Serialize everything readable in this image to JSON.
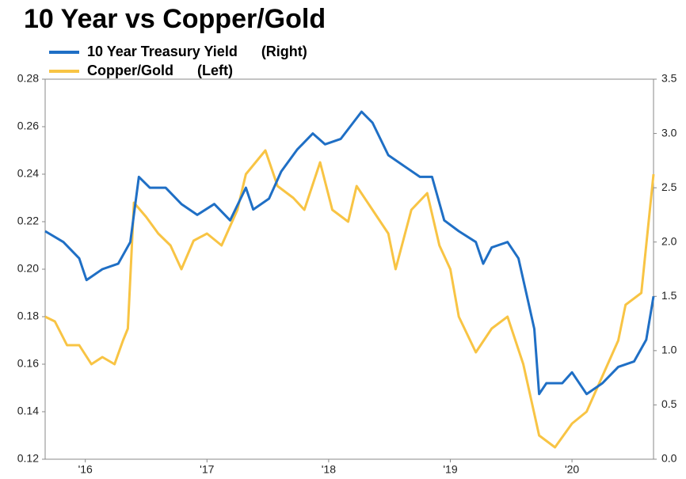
{
  "chart_data": {
    "type": "line",
    "title": "10 Year vs Copper/Gold",
    "xlim": [
      2015.67,
      2020.67
    ],
    "xticks": [
      {
        "value": 2016,
        "label": "'16"
      },
      {
        "value": 2017,
        "label": "'17"
      },
      {
        "value": 2018,
        "label": "'18"
      },
      {
        "value": 2019,
        "label": "'19"
      },
      {
        "value": 2020,
        "label": "'20"
      }
    ],
    "ylim": [
      0.12,
      0.28
    ],
    "yticks": [
      0.12,
      0.14,
      0.16,
      0.18,
      {
        "value": 0.2,
        "label": "0.20"
      },
      0.22,
      0.24,
      0.26,
      0.28
    ],
    "y2lim": [
      0,
      3.5
    ],
    "y2ticks": [
      {
        "value": 0,
        "label": "0.0"
      },
      0.5,
      {
        "value": 1,
        "label": "1.0"
      },
      1.5,
      {
        "value": 2,
        "label": "2.0"
      },
      2.5,
      {
        "value": 3,
        "label": "3.0"
      },
      3.5
    ],
    "grid": false,
    "series": [
      {
        "name": "10 Year Treasury Yield",
        "side_label": "(Right)",
        "color": "#1f6fc5",
        "axis": "y2",
        "x": [
          2015.67,
          2015.82,
          2015.95,
          2016.01,
          2016.14,
          2016.27,
          2016.37,
          2016.44,
          2016.53,
          2016.66,
          2016.79,
          2016.92,
          2017.06,
          2017.19,
          2017.32,
          2017.38,
          2017.51,
          2017.61,
          2017.74,
          2017.87,
          2017.97,
          2018.1,
          2018.27,
          2018.36,
          2018.49,
          2018.62,
          2018.75,
          2018.85,
          2018.95,
          2019.07,
          2019.21,
          2019.27,
          2019.34,
          2019.47,
          2019.56,
          2019.63,
          2019.69,
          2019.73,
          2019.79,
          2019.92,
          2020.0,
          2020.12,
          2020.25,
          2020.38,
          2020.51,
          2020.61,
          2020.67
        ],
        "values": [
          2.1,
          2.0,
          1.85,
          1.65,
          1.75,
          1.8,
          2.0,
          2.6,
          2.5,
          2.5,
          2.35,
          2.25,
          2.35,
          2.2,
          2.5,
          2.3,
          2.4,
          2.65,
          2.85,
          3.0,
          2.9,
          2.95,
          3.2,
          3.1,
          2.8,
          2.7,
          2.6,
          2.6,
          2.2,
          2.1,
          2.0,
          1.8,
          1.95,
          2.0,
          1.85,
          1.5,
          1.2,
          0.6,
          0.7,
          0.7,
          0.8,
          0.6,
          0.7,
          0.85,
          0.9,
          1.1,
          1.5
        ]
      },
      {
        "name": "Copper/Gold",
        "side_label": "(Left)",
        "color": "#f8c444",
        "axis": "y",
        "x": [
          2015.67,
          2015.75,
          2015.85,
          2015.95,
          2016.05,
          2016.14,
          2016.24,
          2016.31,
          2016.35,
          2016.4,
          2016.5,
          2016.6,
          2016.7,
          2016.79,
          2016.89,
          2017.0,
          2017.12,
          2017.25,
          2017.32,
          2017.48,
          2017.58,
          2017.71,
          2017.8,
          2017.93,
          2018.03,
          2018.16,
          2018.23,
          2018.36,
          2018.49,
          2018.55,
          2018.68,
          2018.81,
          2018.91,
          2019.0,
          2019.07,
          2019.21,
          2019.34,
          2019.47,
          2019.6,
          2019.73,
          2019.86,
          2020.0,
          2020.12,
          2020.25,
          2020.38,
          2020.44,
          2020.57,
          2020.67
        ],
        "values": [
          0.18,
          0.178,
          0.168,
          0.168,
          0.16,
          0.163,
          0.16,
          0.17,
          0.175,
          0.228,
          0.222,
          0.215,
          0.21,
          0.2,
          0.212,
          0.215,
          0.21,
          0.225,
          0.24,
          0.25,
          0.235,
          0.23,
          0.225,
          0.245,
          0.225,
          0.22,
          0.235,
          0.225,
          0.215,
          0.2,
          0.225,
          0.232,
          0.21,
          0.2,
          0.18,
          0.165,
          0.175,
          0.18,
          0.16,
          0.13,
          0.125,
          0.135,
          0.14,
          0.155,
          0.17,
          0.185,
          0.19,
          0.24
        ]
      }
    ]
  }
}
